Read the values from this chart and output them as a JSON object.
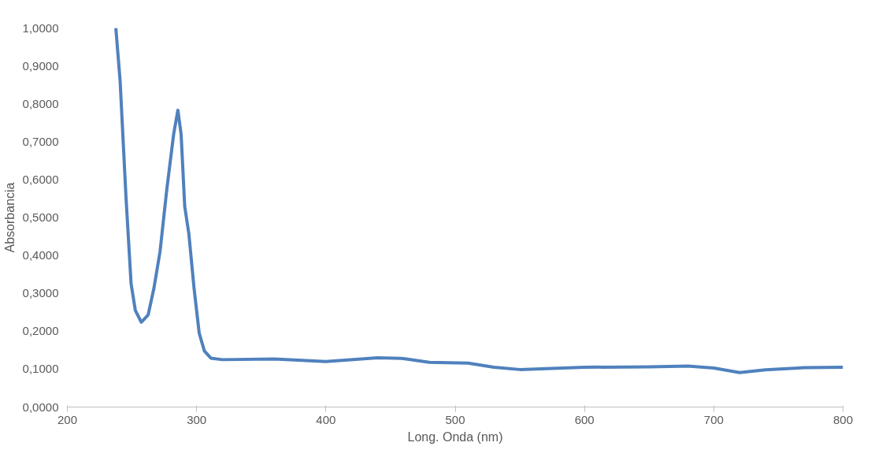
{
  "chart_data": {
    "type": "line",
    "xlabel": "Long. Onda (nm)",
    "ylabel": "Absorbancia",
    "xlim": [
      200,
      800
    ],
    "xticks": [
      200,
      300,
      400,
      500,
      600,
      700,
      800
    ],
    "ylim": [
      0,
      1
    ],
    "yticks": [
      {
        "value": 0,
        "label": "0,0000"
      },
      {
        "value": 0.1,
        "label": "0,1000"
      },
      {
        "value": 0.2,
        "label": "0,2000"
      },
      {
        "value": 0.3,
        "label": "0,3000"
      },
      {
        "value": 0.4,
        "label": "0,4000"
      },
      {
        "value": 0.5,
        "label": "0,5000"
      },
      {
        "value": 0.6,
        "label": "0,6000"
      },
      {
        "value": 0.7,
        "label": "0,7000"
      },
      {
        "value": 0.8,
        "label": "0,8000"
      },
      {
        "value": 0.9,
        "label": "0,9000"
      },
      {
        "value": 1,
        "label": "1,0000"
      }
    ],
    "grid": false,
    "marker": "none",
    "line_style": "solid",
    "x": [
      237.5,
      240.8,
      245.4,
      249.3,
      252.6,
      257.2,
      262.5,
      267,
      271.7,
      277,
      282.2,
      285.5,
      288,
      290.8,
      294,
      298,
      302,
      306,
      311,
      320,
      360,
      400,
      440,
      460,
      480,
      510,
      530,
      550,
      600,
      650,
      680,
      700,
      720,
      740,
      770,
      800
    ],
    "series": [
      {
        "color": "#4f81bd",
        "values": [
          1.0,
          0.862,
          0.552,
          0.326,
          0.255,
          0.224,
          0.243,
          0.314,
          0.41,
          0.576,
          0.719,
          0.783,
          0.72,
          0.529,
          0.457,
          0.314,
          0.195,
          0.148,
          0.129,
          0.125,
          0.127,
          0.12,
          0.13,
          0.128,
          0.118,
          0.116,
          0.105,
          0.099,
          0.105,
          0.106,
          0.108,
          0.103,
          0.091,
          0.098,
          0.104,
          0.105
        ]
      }
    ]
  }
}
